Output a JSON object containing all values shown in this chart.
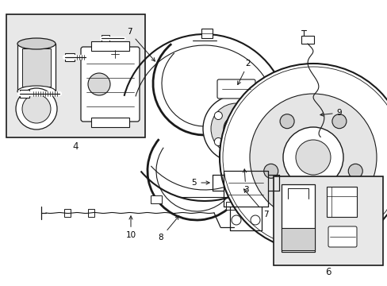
{
  "bg_color": "#ffffff",
  "line_color": "#1a1a1a",
  "label_color": "#000000",
  "box_bg": "#ebebeb",
  "figsize": [
    4.89,
    3.6
  ],
  "dpi": 100
}
